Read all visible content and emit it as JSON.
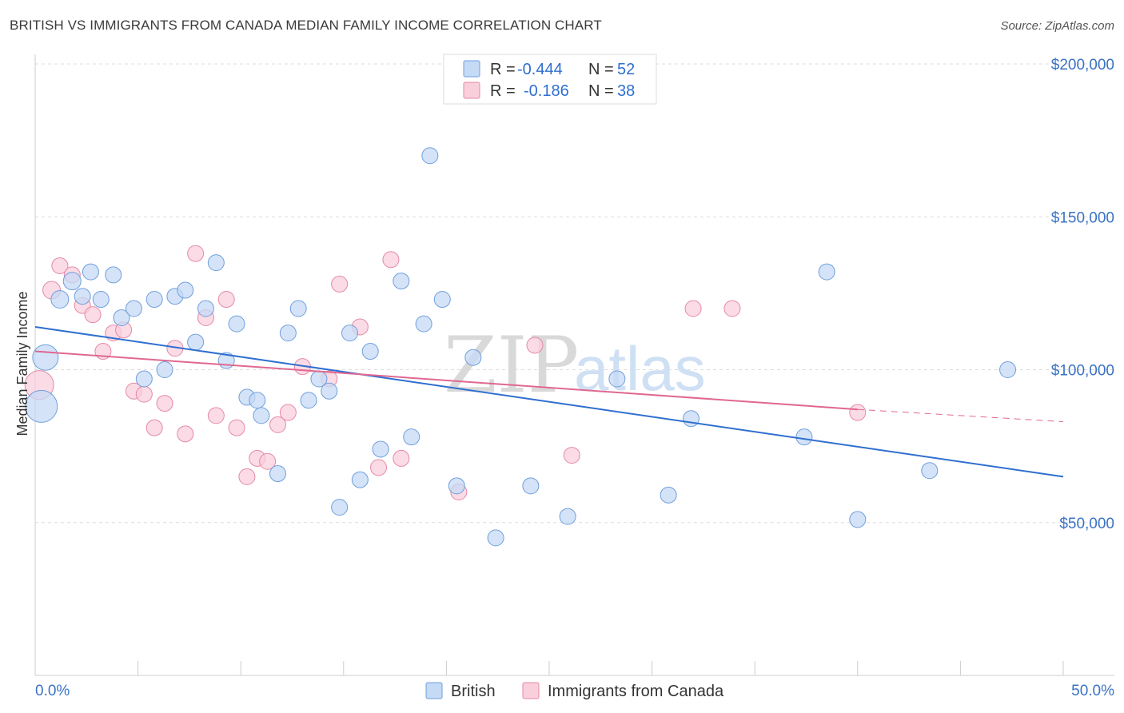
{
  "title": "BRITISH VS IMMIGRANTS FROM CANADA MEDIAN FAMILY INCOME CORRELATION CHART",
  "source": "Source: ZipAtlas.com",
  "watermark": {
    "zip": "ZIP",
    "atlas": "atlas"
  },
  "legend_top": {
    "rows": [
      {
        "r_label": "R =",
        "r_value": "-0.444",
        "n_label": "N =",
        "n_value": "52"
      },
      {
        "r_label": "R =",
        "r_value": "-0.186",
        "n_label": "N =",
        "n_value": "38"
      }
    ]
  },
  "legend_bottom": {
    "british": "British",
    "canada": "Immigrants from Canada"
  },
  "colors": {
    "british_fill": "#c5daf5",
    "british_stroke": "#6f9fdc",
    "british_line": "#2f6fd0",
    "canada_fill": "#f9cfdc",
    "canada_stroke": "#e48aa6",
    "canada_line": "#e06890",
    "grid": "#dddddd",
    "axis_label": "#3b73c4"
  },
  "chart_data": {
    "type": "scatter",
    "title": "BRITISH VS IMMIGRANTS FROM CANADA MEDIAN FAMILY INCOME CORRELATION CHART",
    "xlabel": "",
    "ylabel": "Median Family Income",
    "xlim": [
      0,
      50
    ],
    "ylim": [
      0,
      200000
    ],
    "x_tick_labels": [
      "0.0%",
      "50.0%"
    ],
    "y_ticks": [
      50000,
      100000,
      150000,
      200000
    ],
    "y_tick_labels": [
      "$50,000",
      "$100,000",
      "$150,000",
      "$200,000"
    ],
    "series": [
      {
        "name": "British",
        "r": -0.444,
        "n": 52,
        "trend": {
          "x0": 0,
          "y0": 114000,
          "x1": 50,
          "y1": 65000
        },
        "points": [
          [
            0.5,
            104000,
            16
          ],
          [
            0.3,
            88000,
            20
          ],
          [
            1.2,
            123000,
            11
          ],
          [
            1.8,
            129000,
            11
          ],
          [
            2.3,
            124000,
            10
          ],
          [
            2.7,
            132000,
            10
          ],
          [
            3.2,
            123000,
            10
          ],
          [
            3.8,
            131000,
            10
          ],
          [
            4.2,
            117000,
            10
          ],
          [
            4.8,
            120000,
            10
          ],
          [
            5.3,
            97000,
            10
          ],
          [
            5.8,
            123000,
            10
          ],
          [
            6.3,
            100000,
            10
          ],
          [
            6.8,
            124000,
            10
          ],
          [
            7.3,
            126000,
            10
          ],
          [
            7.8,
            109000,
            10
          ],
          [
            8.3,
            120000,
            10
          ],
          [
            8.8,
            135000,
            10
          ],
          [
            9.3,
            103000,
            10
          ],
          [
            9.8,
            115000,
            10
          ],
          [
            10.3,
            91000,
            10
          ],
          [
            10.8,
            90000,
            10
          ],
          [
            11.0,
            85000,
            10
          ],
          [
            11.8,
            66000,
            10
          ],
          [
            12.3,
            112000,
            10
          ],
          [
            12.8,
            120000,
            10
          ],
          [
            13.3,
            90000,
            10
          ],
          [
            13.8,
            97000,
            10
          ],
          [
            14.3,
            93000,
            10
          ],
          [
            14.8,
            55000,
            10
          ],
          [
            15.3,
            112000,
            10
          ],
          [
            15.8,
            64000,
            10
          ],
          [
            16.3,
            106000,
            10
          ],
          [
            16.8,
            74000,
            10
          ],
          [
            17.8,
            129000,
            10
          ],
          [
            18.3,
            78000,
            10
          ],
          [
            18.9,
            115000,
            10
          ],
          [
            19.2,
            170000,
            10
          ],
          [
            19.8,
            123000,
            10
          ],
          [
            20.5,
            62000,
            10
          ],
          [
            21.3,
            104000,
            10
          ],
          [
            22.4,
            45000,
            10
          ],
          [
            24.1,
            62000,
            10
          ],
          [
            25.9,
            52000,
            10
          ],
          [
            28.3,
            97000,
            10
          ],
          [
            30.8,
            59000,
            10
          ],
          [
            31.9,
            84000,
            10
          ],
          [
            37.4,
            78000,
            10
          ],
          [
            38.5,
            132000,
            10
          ],
          [
            40.0,
            51000,
            10
          ],
          [
            43.5,
            67000,
            10
          ],
          [
            47.3,
            100000,
            10
          ]
        ]
      },
      {
        "name": "Immigrants from Canada",
        "r": -0.186,
        "n": 38,
        "trend": {
          "x0": 0,
          "y0": 106000,
          "x1": 40,
          "y1": 87000
        },
        "trend_dashed": {
          "x0": 40,
          "y0": 87000,
          "x1": 50,
          "y1": 83000
        },
        "points": [
          [
            0.2,
            95000,
            18
          ],
          [
            0.8,
            126000,
            11
          ],
          [
            1.2,
            134000,
            10
          ],
          [
            1.8,
            131000,
            10
          ],
          [
            2.3,
            121000,
            10
          ],
          [
            2.8,
            118000,
            10
          ],
          [
            3.3,
            106000,
            10
          ],
          [
            3.8,
            112000,
            10
          ],
          [
            4.3,
            113000,
            10
          ],
          [
            4.8,
            93000,
            10
          ],
          [
            5.3,
            92000,
            10
          ],
          [
            5.8,
            81000,
            10
          ],
          [
            6.3,
            89000,
            10
          ],
          [
            6.8,
            107000,
            10
          ],
          [
            7.3,
            79000,
            10
          ],
          [
            7.8,
            138000,
            10
          ],
          [
            8.3,
            117000,
            10
          ],
          [
            8.8,
            85000,
            10
          ],
          [
            9.3,
            123000,
            10
          ],
          [
            9.8,
            81000,
            10
          ],
          [
            10.3,
            65000,
            10
          ],
          [
            10.8,
            71000,
            10
          ],
          [
            11.3,
            70000,
            10
          ],
          [
            11.8,
            82000,
            10
          ],
          [
            12.3,
            86000,
            10
          ],
          [
            13.0,
            101000,
            10
          ],
          [
            14.3,
            97000,
            10
          ],
          [
            14.8,
            128000,
            10
          ],
          [
            15.8,
            114000,
            10
          ],
          [
            16.7,
            68000,
            10
          ],
          [
            17.3,
            136000,
            10
          ],
          [
            17.8,
            71000,
            10
          ],
          [
            20.6,
            60000,
            10
          ],
          [
            24.3,
            108000,
            10
          ],
          [
            26.1,
            72000,
            10
          ],
          [
            32.0,
            120000,
            10
          ],
          [
            33.9,
            120000,
            10
          ],
          [
            40.0,
            86000,
            10
          ]
        ]
      }
    ]
  }
}
